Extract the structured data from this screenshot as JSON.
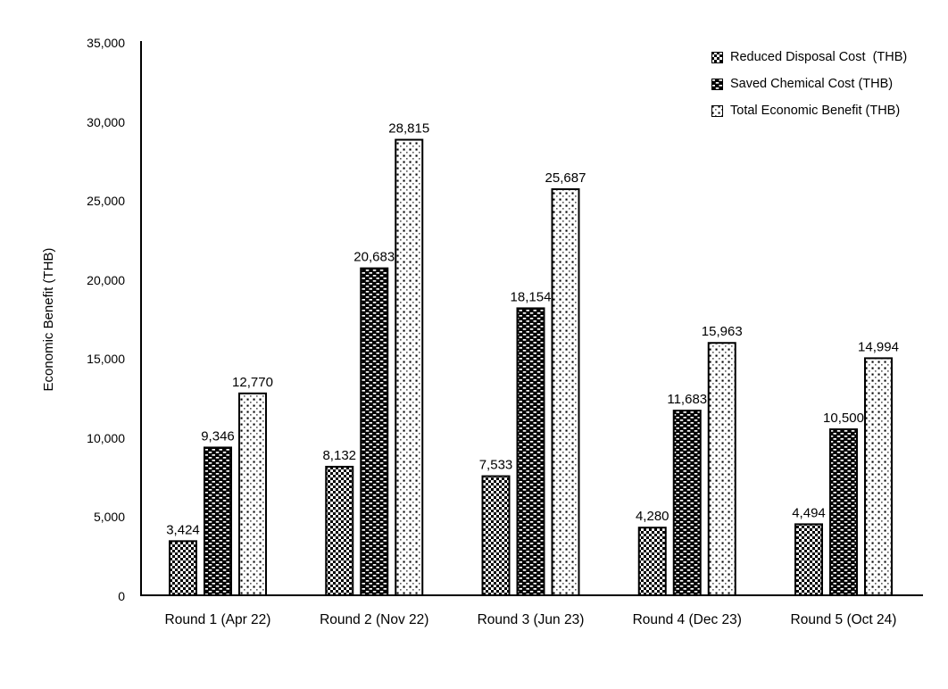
{
  "page": {
    "background": "#ffffff"
  },
  "chart_data": {
    "type": "bar",
    "title": "",
    "ylabel": "Economic Benefit (THB)",
    "xlabel": "",
    "categories": [
      "Round 1 (Apr 22)",
      "Round 2 (Nov 22)",
      "Round 3 (Jun 23)",
      "Round 4 (Dec 23)",
      "Round 5 (Oct 24)"
    ],
    "series": [
      {
        "name": "Reduced Disposal Cost  (THB)",
        "pattern": "checker",
        "values": [
          3424,
          8132,
          7533,
          4280,
          4494
        ],
        "labels": [
          "3,424",
          "8,132",
          "7,533",
          "4,280",
          "4,494"
        ]
      },
      {
        "name": "Saved Chemical Cost (THB)",
        "pattern": "brick-dark",
        "values": [
          9346,
          20683,
          18154,
          11683,
          10500
        ],
        "labels": [
          "9,346",
          "20,683",
          "18,154",
          "11,683",
          "10,500"
        ]
      },
      {
        "name": "Total Economic Benefit (THB)",
        "pattern": "dot-light",
        "values": [
          12770,
          28815,
          25687,
          15963,
          14994
        ],
        "labels": [
          "12,770",
          "28,815",
          "25,687",
          "15,963",
          "14,994"
        ]
      }
    ],
    "ylim": [
      0,
      35000
    ],
    "yticks": [
      {
        "value": 0,
        "label": "0"
      },
      {
        "value": 5000,
        "label": "5,000"
      },
      {
        "value": 10000,
        "label": "10,000"
      },
      {
        "value": 15000,
        "label": "15,000"
      },
      {
        "value": 20000,
        "label": "20,000"
      },
      {
        "value": 25000,
        "label": "25,000"
      },
      {
        "value": 30000,
        "label": "30,000"
      },
      {
        "value": 35000,
        "label": "35,000"
      }
    ],
    "grid": false,
    "legend_position": "top-right",
    "colors": {
      "ink": "#000000",
      "background": "#ffffff"
    }
  }
}
